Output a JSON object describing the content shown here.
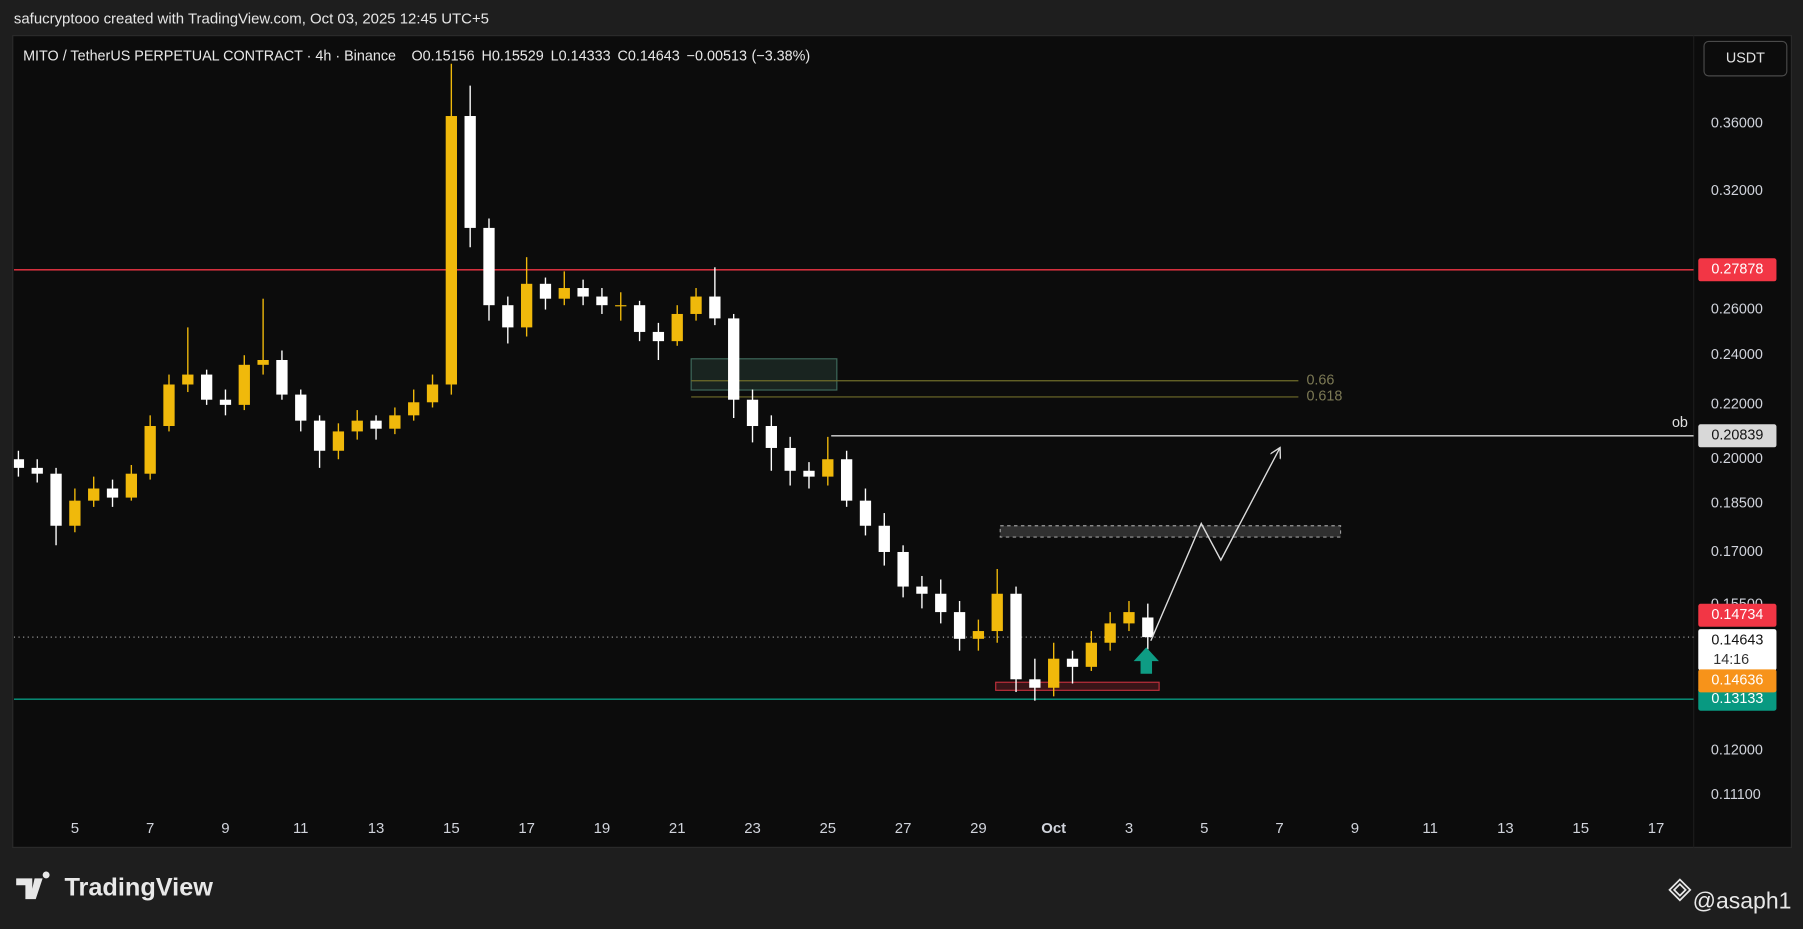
{
  "header": {
    "credit": "safucryptooo created with TradingView.com, Oct 03, 2025 12:45 UTC+5"
  },
  "currency": "USDT",
  "footer": {
    "brand": "TradingView",
    "watermark": "@asaph1"
  },
  "chart_data": {
    "type": "candlestick",
    "title": "MITO / TetherUS PERPETUAL CONTRACT · 4h · Binance",
    "ohlc": [
      {
        "label": "O",
        "value": 0.15156
      },
      {
        "label": "H",
        "value": 0.15529
      },
      {
        "label": "L",
        "value": 0.14333
      },
      {
        "label": "C",
        "value": 0.14643
      }
    ],
    "change": {
      "value": -0.00513,
      "label": "−0.00513"
    },
    "change_pct": {
      "value": -3.38,
      "label": "(−3.38%)"
    },
    "ylog": true,
    "up_color": "#f0b90b",
    "down_color": "#ffffff",
    "xlim": [
      3.38,
      48.0
    ],
    "ylim": [
      0.1013,
      0.416
    ],
    "xticks": [
      5,
      7,
      9,
      11,
      13,
      15,
      17,
      19,
      21,
      23,
      25,
      27,
      29,
      {
        "value": 31,
        "label": "Oct"
      },
      {
        "value": 33,
        "label": "3"
      },
      {
        "value": 35,
        "label": "5"
      },
      {
        "value": 37,
        "label": "7"
      },
      {
        "value": 39,
        "label": "9"
      },
      {
        "value": 41,
        "label": "11"
      },
      {
        "value": 43,
        "label": "13"
      },
      {
        "value": 45,
        "label": "15"
      },
      {
        "value": 47,
        "label": "17"
      }
    ],
    "yticks": [
      {
        "value": 0.36,
        "label": "0.36000"
      },
      {
        "value": 0.32,
        "label": "0.32000"
      },
      {
        "value": 0.26,
        "label": "0.26000"
      },
      {
        "value": 0.24,
        "label": "0.24000"
      },
      {
        "value": 0.22,
        "label": "0.22000"
      },
      {
        "value": 0.2,
        "label": "0.20000"
      },
      {
        "value": 0.185,
        "label": "0.18500"
      },
      {
        "value": 0.17,
        "label": "0.17000"
      },
      {
        "value": 0.155,
        "label": "0.15500"
      },
      {
        "value": 0.12,
        "label": "0.12000"
      },
      {
        "value": 0.111,
        "label": "0.11100"
      }
    ],
    "x": [
      3.5,
      4,
      4.5,
      5,
      5.5,
      6,
      6.5,
      7,
      7.5,
      8,
      8.5,
      9,
      9.5,
      10,
      10.5,
      11,
      11.5,
      12,
      12.5,
      13,
      13.5,
      14,
      14.5,
      15,
      15.5,
      16,
      16.5,
      17,
      17.5,
      18,
      18.5,
      19,
      19.5,
      20,
      20.5,
      21,
      21.5,
      22,
      22.5,
      23,
      23.5,
      24,
      24.5,
      25,
      25.5,
      26,
      26.5,
      27,
      27.5,
      28,
      28.5,
      29,
      29.5,
      30,
      30.5,
      31,
      31.5,
      32,
      32.5,
      33,
      33.5
    ],
    "open": [
      0.2,
      0.197,
      0.195,
      0.178,
      0.186,
      0.19,
      0.187,
      0.195,
      0.212,
      0.228,
      0.232,
      0.222,
      0.22,
      0.236,
      0.238,
      0.224,
      0.214,
      0.203,
      0.21,
      0.214,
      0.211,
      0.216,
      0.221,
      0.228,
      0.365,
      0.3,
      0.262,
      0.252,
      0.272,
      0.265,
      0.27,
      0.266,
      0.262,
      0.262,
      0.25,
      0.246,
      0.258,
      0.266,
      0.256,
      0.222,
      0.212,
      0.204,
      0.196,
      0.194,
      0.2,
      0.186,
      0.178,
      0.17,
      0.16,
      0.158,
      0.153,
      0.146,
      0.148,
      0.158,
      0.136,
      0.134,
      0.141,
      0.139,
      0.145,
      0.15,
      0.15156
    ],
    "high": [
      0.203,
      0.2,
      0.197,
      0.19,
      0.194,
      0.193,
      0.198,
      0.216,
      0.232,
      0.252,
      0.234,
      0.226,
      0.24,
      0.265,
      0.242,
      0.226,
      0.216,
      0.213,
      0.218,
      0.216,
      0.219,
      0.226,
      0.232,
      0.4,
      0.385,
      0.305,
      0.266,
      0.285,
      0.275,
      0.278,
      0.274,
      0.27,
      0.268,
      0.264,
      0.254,
      0.262,
      0.27,
      0.28,
      0.258,
      0.226,
      0.216,
      0.208,
      0.199,
      0.208,
      0.203,
      0.19,
      0.182,
      0.172,
      0.163,
      0.162,
      0.156,
      0.151,
      0.165,
      0.16,
      0.141,
      0.145,
      0.143,
      0.148,
      0.153,
      0.156,
      0.15529
    ],
    "low": [
      0.194,
      0.192,
      0.172,
      0.176,
      0.184,
      0.184,
      0.186,
      0.193,
      0.21,
      0.225,
      0.22,
      0.216,
      0.218,
      0.232,
      0.222,
      0.21,
      0.197,
      0.2,
      0.207,
      0.207,
      0.209,
      0.214,
      0.219,
      0.224,
      0.29,
      0.255,
      0.245,
      0.248,
      0.26,
      0.262,
      0.262,
      0.258,
      0.255,
      0.246,
      0.238,
      0.244,
      0.255,
      0.253,
      0.215,
      0.206,
      0.196,
      0.191,
      0.19,
      0.191,
      0.184,
      0.175,
      0.166,
      0.157,
      0.154,
      0.15,
      0.143,
      0.143,
      0.145,
      0.133,
      0.131,
      0.132,
      0.135,
      0.138,
      0.143,
      0.148,
      0.14333
    ],
    "close": [
      0.197,
      0.195,
      0.178,
      0.186,
      0.19,
      0.187,
      0.195,
      0.212,
      0.228,
      0.232,
      0.222,
      0.22,
      0.236,
      0.238,
      0.224,
      0.214,
      0.203,
      0.21,
      0.214,
      0.211,
      0.216,
      0.221,
      0.228,
      0.365,
      0.3,
      0.262,
      0.252,
      0.272,
      0.265,
      0.27,
      0.266,
      0.262,
      0.262,
      0.25,
      0.246,
      0.258,
      0.266,
      0.256,
      0.222,
      0.212,
      0.204,
      0.196,
      0.194,
      0.2,
      0.186,
      0.178,
      0.17,
      0.16,
      0.158,
      0.153,
      0.146,
      0.148,
      0.158,
      0.136,
      0.134,
      0.141,
      0.139,
      0.145,
      0.15,
      0.153,
      0.14643
    ],
    "levels": [
      {
        "value": 0.27878,
        "start": 3.38,
        "color": "#f23645",
        "label_color": "#ffffff"
      },
      {
        "value": 0.20839,
        "start": 25.09,
        "color": "#d8d8d8",
        "label_color": "#131313",
        "note": "ob"
      },
      {
        "value": 0.13133,
        "start": 3.38,
        "color": "#089981",
        "label_color": "#ffffff"
      }
    ],
    "last_price": {
      "value": 0.14643,
      "countdown": "14:16"
    },
    "price_marks": [
      {
        "value": 0.14734,
        "color": "#f23645"
      },
      {
        "value": 0.14636,
        "color": "#f7931a"
      }
    ],
    "fib_levels": [
      {
        "ratio": 0.66,
        "price": 0.2295
      },
      {
        "ratio": 0.618,
        "price": 0.2231
      }
    ],
    "fib_range": [
      21.37,
      37.5
    ],
    "zones": [
      {
        "start": 21.37,
        "end": 25.24,
        "low": 0.2258,
        "high": 0.2385,
        "color": "#3f6b5c"
      },
      {
        "start": 29.58,
        "end": 38.62,
        "low": 0.1745,
        "high": 0.178,
        "color": "#9a9a9a"
      },
      {
        "start": 29.46,
        "end": 33.8,
        "low": 0.1334,
        "high": 0.1353,
        "color": "#c0303c"
      }
    ],
    "projection": {
      "x": [
        33.58,
        34.92,
        35.44,
        37.0
      ],
      "price": [
        0.1455,
        0.1787,
        0.1676,
        0.2038
      ]
    },
    "signal": {
      "x": 33.46,
      "price": 0.1404,
      "color": "#0e9c84"
    }
  }
}
